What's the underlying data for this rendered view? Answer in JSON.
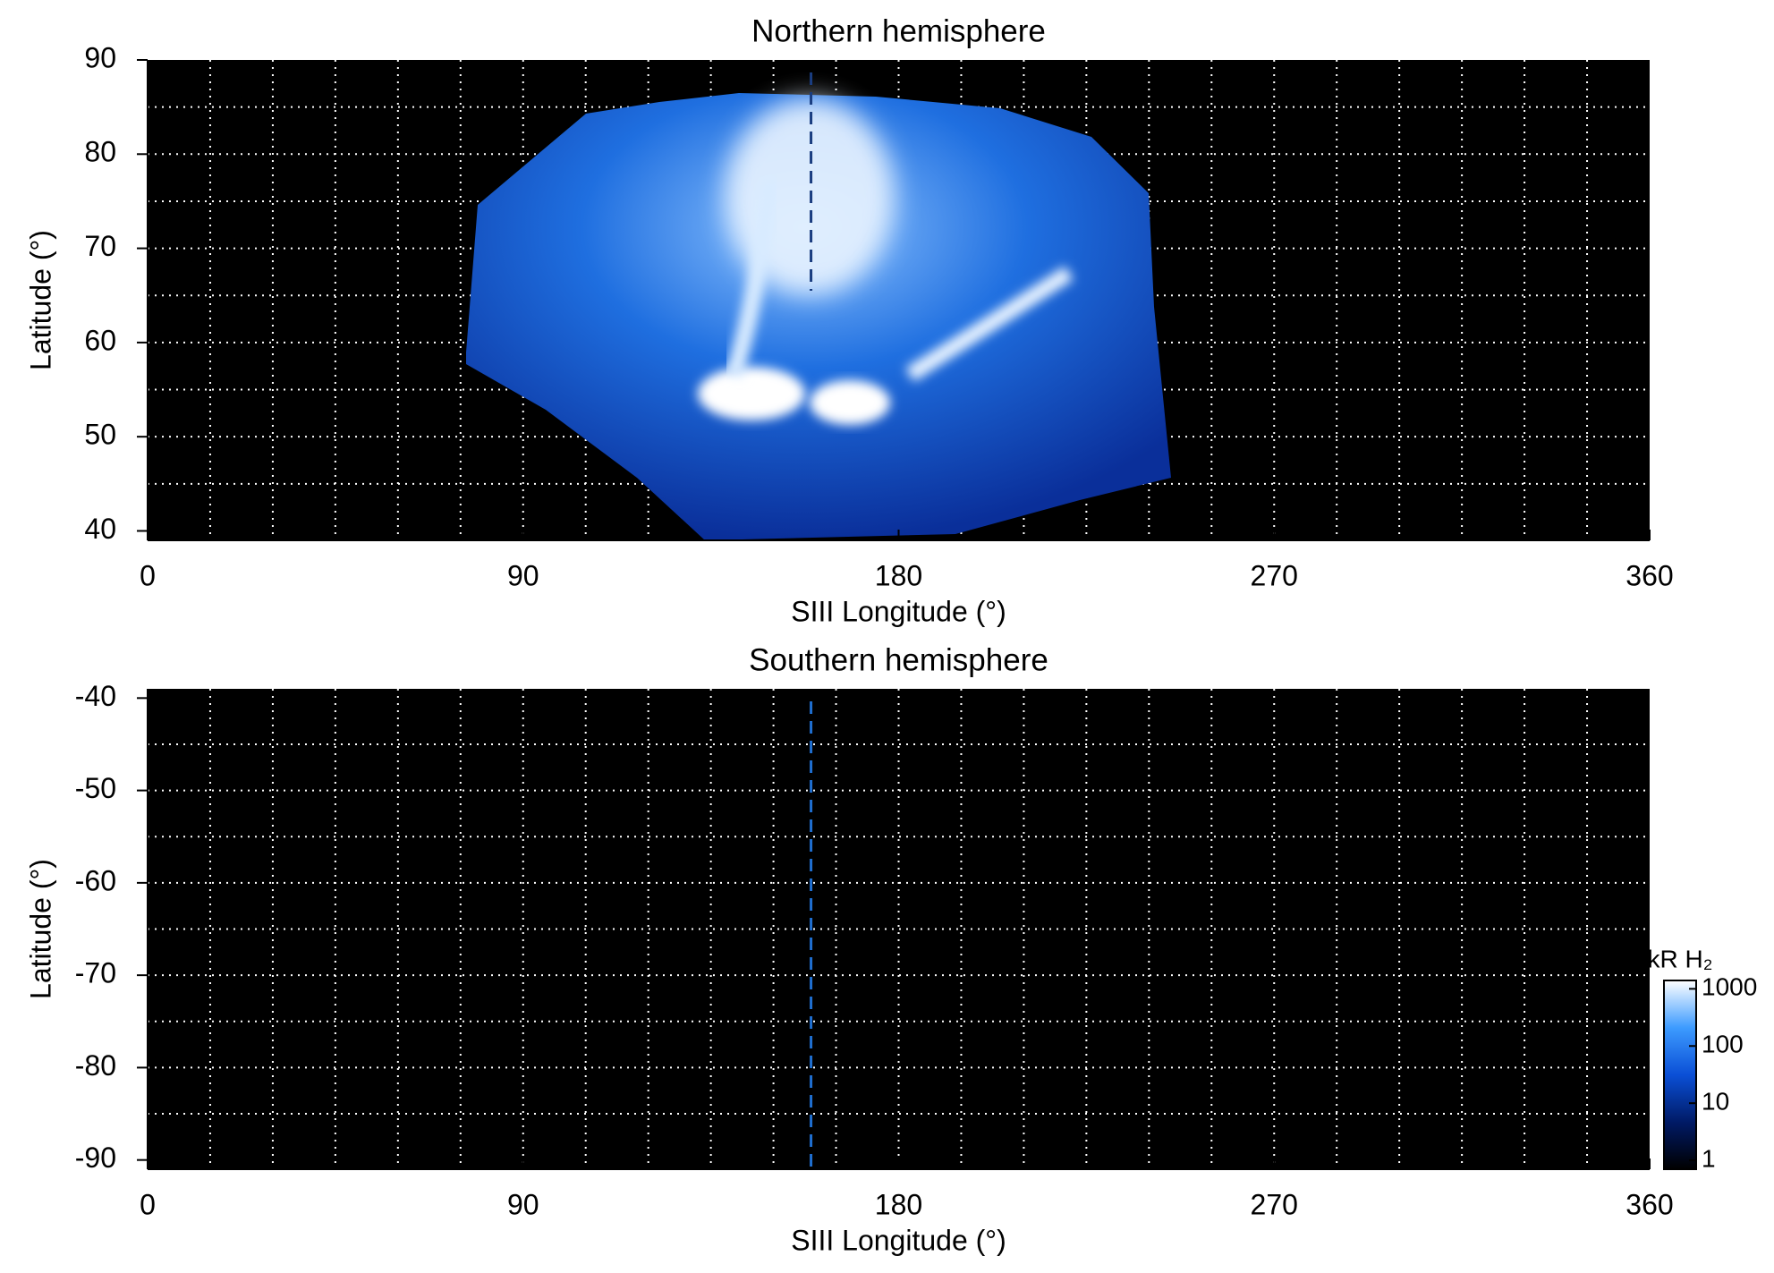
{
  "chart_data": [
    {
      "type": "map",
      "title": "Northern hemisphere",
      "xlabel": "SIII Longitude (°)",
      "ylabel": "Latitude (°)",
      "xlim": [
        0,
        360
      ],
      "xticks": [
        0,
        90,
        180,
        270,
        360
      ],
      "xgrid": [
        15,
        30,
        45,
        60,
        75,
        90,
        105,
        120,
        135,
        150,
        165,
        180,
        195,
        210,
        225,
        240,
        255,
        270,
        285,
        300,
        315,
        330,
        345
      ],
      "ylim": [
        39,
        90
      ],
      "yticks": [
        40,
        50,
        60,
        70,
        80,
        90
      ],
      "ygrid": [
        45,
        50,
        55,
        60,
        65,
        70,
        75,
        80,
        85
      ],
      "reference_line_x": 159,
      "reference_line_color": "#1a3d80",
      "background": "#000000"
    },
    {
      "type": "map",
      "title": "Southern hemisphere",
      "xlabel": "SIII Longitude (°)",
      "ylabel": "Latitude (°)",
      "xlim": [
        0,
        360
      ],
      "xticks": [
        0,
        90,
        180,
        270,
        360
      ],
      "xgrid": [
        15,
        30,
        45,
        60,
        75,
        90,
        105,
        120,
        135,
        150,
        165,
        180,
        195,
        210,
        225,
        240,
        255,
        270,
        285,
        300,
        315,
        330,
        345
      ],
      "ylim": [
        -91,
        -39
      ],
      "yticks": [
        -40,
        -50,
        -60,
        -70,
        -80,
        -90
      ],
      "ygrid": [
        -45,
        -50,
        -55,
        -60,
        -65,
        -70,
        -75,
        -80,
        -85
      ],
      "reference_line_x": 159,
      "reference_line_color": "#1f6fd0",
      "background": "#000000",
      "colorbar": {
        "title": "kR H₂",
        "lim": [
          0.7,
          1400
        ],
        "ticks": [
          1,
          10,
          100,
          1000
        ],
        "log": true,
        "colors": [
          "#000000",
          "#001a66",
          "#0a4fd6",
          "#3d9bff",
          "#ffffff"
        ]
      }
    }
  ]
}
